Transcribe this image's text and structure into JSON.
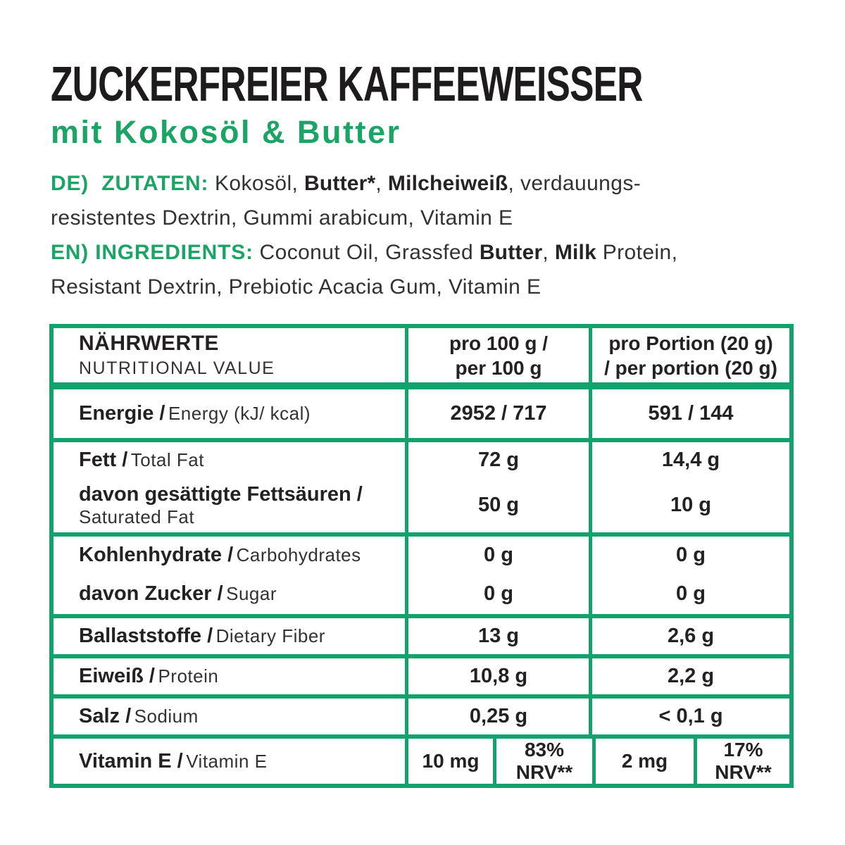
{
  "colors": {
    "green_border": "#12A26E",
    "green_text": "#1CA466",
    "ink": "#242122"
  },
  "header": {
    "title": "ZUCKERFREIER KAFFEEWEISSER",
    "subtitle": "mit Kokosöl & Butter"
  },
  "ingredients": {
    "de_line1": [
      {
        "t": "DE)  ZUTATEN:",
        "s": "gb"
      },
      {
        "t": " Kokosöl, ",
        "s": "r"
      },
      {
        "t": "Butter*",
        "s": "b"
      },
      {
        "t": ", ",
        "s": "r"
      },
      {
        "t": "Milcheiweiß",
        "s": "b"
      },
      {
        "t": ", verdauungs-",
        "s": "r"
      }
    ],
    "de_line2": [
      {
        "t": "resistentes Dextrin, Gummi arabicum, Vitamin E",
        "s": "r"
      }
    ],
    "en_line1": [
      {
        "t": "EN) INGREDIENTS:",
        "s": "gb"
      },
      {
        "t": " Coconut Oil, Grassfed ",
        "s": "r"
      },
      {
        "t": "Butter",
        "s": "b"
      },
      {
        "t": ", ",
        "s": "r"
      },
      {
        "t": "Milk",
        "s": "b"
      },
      {
        "t": " Protein,",
        "s": "r"
      }
    ],
    "en_line2": [
      {
        "t": "Resistant Dextrin, Prebiotic Acacia Gum, Vitamin E",
        "s": "r"
      }
    ]
  },
  "table": {
    "header": {
      "name_de": "NÄHRWERTE",
      "name_en": "NUTRITIONAL VALUE",
      "per100_l1": "pro 100 g /",
      "per100_l2": "per 100 g",
      "portion_l1": "pro Portion (20 g)",
      "portion_l2": "/ per portion (20 g)"
    },
    "rows": [
      {
        "de": "Energie /",
        "en": "Energy (kJ/ kcal)",
        "per100": "2952 / 717",
        "portion": "591 / 144"
      },
      {
        "de": "Fett /",
        "en": "Total Fat",
        "per100": "72 g",
        "portion": "14,4 g"
      },
      {
        "de": "davon gesättigte Fettsäuren /",
        "en": "Saturated Fat",
        "per100": "50 g",
        "portion": "10 g"
      },
      {
        "de": "Kohlenhydrate /",
        "en": "Carbohydrates",
        "per100": "0 g",
        "portion": "0 g"
      },
      {
        "de": "davon Zucker /",
        "en": "Sugar",
        "per100": "0 g",
        "portion": "0 g"
      },
      {
        "de": "Ballaststoffe /",
        "en": "Dietary Fiber",
        "per100": "13 g",
        "portion": "2,6 g"
      },
      {
        "de": "Eiweiß /",
        "en": "Protein",
        "per100": "10,8 g",
        "portion": "2,2 g"
      },
      {
        "de": "Salz /",
        "en": "Sodium",
        "per100": "0,25 g",
        "portion": "< 0,1 g"
      }
    ],
    "vitamin": {
      "de": "Vitamin E /",
      "en": "Vitamin E",
      "per100_value": "10 mg",
      "per100_nrv_pct": "83%",
      "per100_nrv_label": "NRV**",
      "portion_value": "2 mg",
      "portion_nrv_pct": "17%",
      "portion_nrv_label": "NRV**"
    }
  }
}
